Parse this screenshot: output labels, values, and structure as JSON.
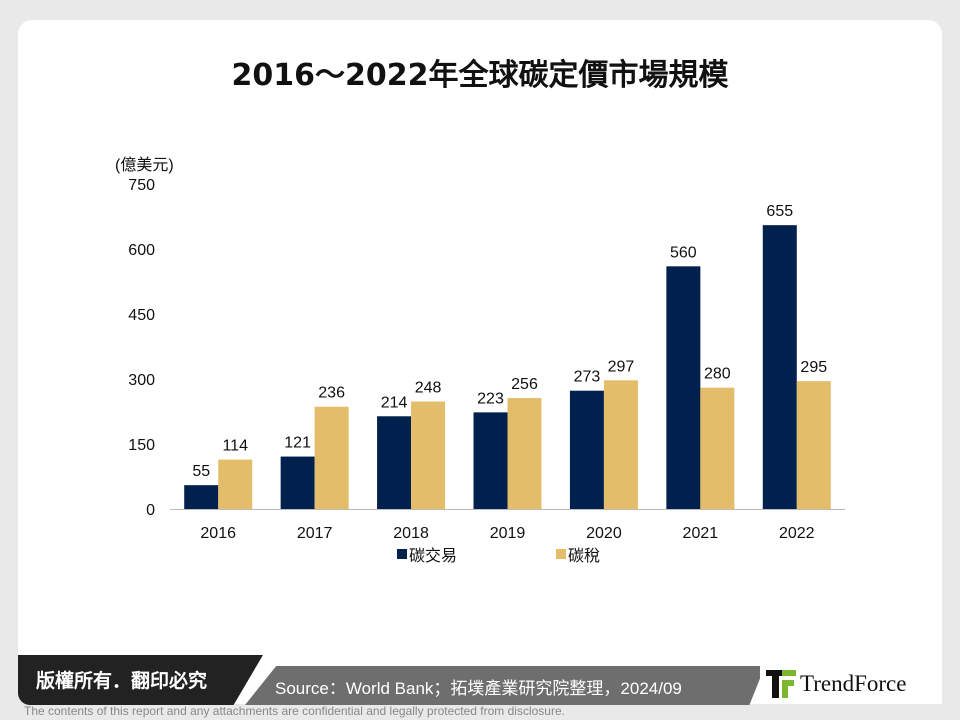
{
  "title": "2016～2022年全球碳定價市場規模",
  "footer": {
    "copyright": "版權所有．翻印必究",
    "source": "Source：World Bank；拓墣產業研究院整理，2024/09",
    "logo": "TrendForce",
    "disclaimer": "The contents of this report and any attachments are confidential and legally protected from disclosure."
  },
  "chart_data": {
    "type": "bar",
    "title": "2016～2022年全球碳定價市場規模",
    "ylabel": "(億美元)",
    "ylim": [
      0,
      750
    ],
    "yticks": [
      0,
      150,
      300,
      450,
      600,
      750
    ],
    "categories": [
      "2016",
      "2017",
      "2018",
      "2019",
      "2020",
      "2021",
      "2022"
    ],
    "series": [
      {
        "name": "碳交易",
        "color": "#00204e",
        "values": [
          55,
          121,
          214,
          223,
          273,
          560,
          655
        ]
      },
      {
        "name": "碳稅",
        "color": "#e3bd6a",
        "values": [
          114,
          236,
          248,
          256,
          297,
          280,
          295
        ]
      }
    ],
    "legend": "bottom",
    "grid": false
  }
}
